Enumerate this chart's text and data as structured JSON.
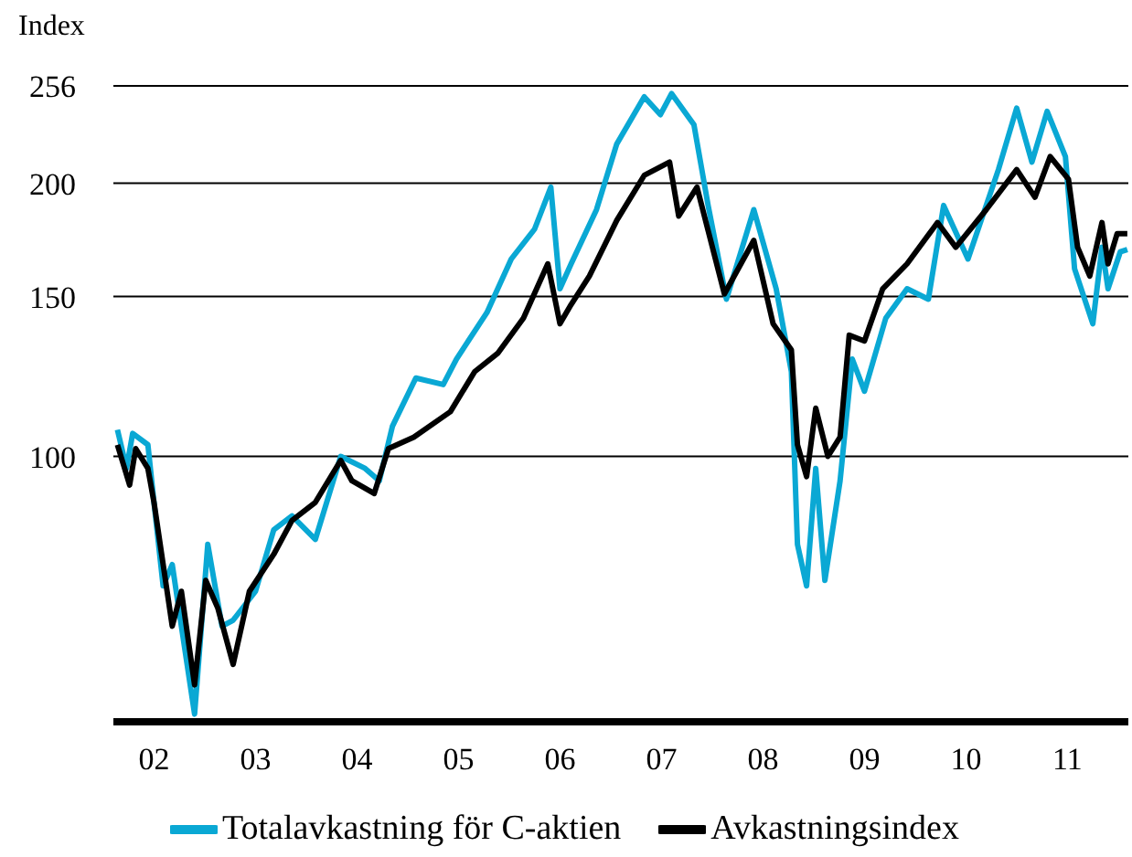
{
  "chart_data": {
    "type": "line",
    "ylabel": "Index",
    "log": "y",
    "grid": "y",
    "legend": "bottom",
    "line_style": "solid",
    "marker": "none",
    "xlim": [
      1.6,
      11.6
    ],
    "xticks": [
      {
        "value": 2,
        "label": "02"
      },
      {
        "value": 3,
        "label": "03"
      },
      {
        "value": 4,
        "label": "04"
      },
      {
        "value": 5,
        "label": "05"
      },
      {
        "value": 6,
        "label": "06"
      },
      {
        "value": 7,
        "label": "07"
      },
      {
        "value": 8,
        "label": "08"
      },
      {
        "value": 9,
        "label": "09"
      },
      {
        "value": 10,
        "label": "10"
      },
      {
        "value": 11,
        "label": "11"
      }
    ],
    "ylim": [
      51,
      256
    ],
    "yticks": [
      100,
      150,
      200,
      256
    ],
    "series": [
      {
        "name": "Totalavkastning för C-aktien",
        "color": "#0aa8d4",
        "x": [
          1.64,
          1.73,
          1.79,
          1.94,
          2.0,
          2.09,
          2.18,
          2.27,
          2.4,
          2.53,
          2.67,
          2.78,
          3.0,
          3.18,
          3.36,
          3.59,
          3.84,
          4.08,
          4.22,
          4.35,
          4.58,
          4.85,
          4.98,
          5.28,
          5.52,
          5.75,
          5.91,
          6.0,
          6.11,
          6.36,
          6.56,
          6.83,
          6.99,
          7.1,
          7.32,
          7.46,
          7.64,
          7.91,
          8.13,
          8.28,
          8.34,
          8.43,
          8.52,
          8.61,
          8.76,
          8.88,
          9.0,
          9.21,
          9.42,
          9.63,
          9.78,
          10.02,
          10.32,
          10.5,
          10.65,
          10.8,
          10.98,
          11.07,
          11.25,
          11.34,
          11.4,
          11.52,
          11.59
        ],
        "values": [
          107,
          97,
          106,
          103,
          89,
          72,
          76,
          65,
          52,
          80,
          65,
          66,
          71,
          83,
          86,
          81,
          100,
          97,
          94,
          108,
          122,
          120,
          128,
          144,
          165,
          178,
          198,
          153,
          163,
          187,
          221,
          249,
          238,
          251,
          232,
          189,
          149,
          187,
          153,
          124,
          80,
          72,
          97,
          73,
          94,
          128,
          118,
          142,
          153,
          149,
          189,
          165,
          207,
          242,
          211,
          240,
          214,
          161,
          140,
          170,
          153,
          168,
          169
        ]
      },
      {
        "name": "Avkastningsindex",
        "color": "#000000",
        "x": [
          1.64,
          1.76,
          1.82,
          1.94,
          2.0,
          2.18,
          2.27,
          2.4,
          2.51,
          2.63,
          2.78,
          2.94,
          3.18,
          3.36,
          3.59,
          3.84,
          3.95,
          4.17,
          4.31,
          4.56,
          4.92,
          5.16,
          5.39,
          5.64,
          5.88,
          6.0,
          6.11,
          6.29,
          6.56,
          6.83,
          7.08,
          7.17,
          7.35,
          7.62,
          7.91,
          8.1,
          8.28,
          8.34,
          8.43,
          8.52,
          8.64,
          8.76,
          8.85,
          9.0,
          9.18,
          9.42,
          9.72,
          9.9,
          10.2,
          10.5,
          10.68,
          10.83,
          11.01,
          11.1,
          11.22,
          11.34,
          11.4,
          11.49,
          11.59
        ],
        "values": [
          103,
          93,
          102,
          97,
          89,
          65,
          71,
          56,
          73,
          68,
          59,
          71,
          78,
          85,
          89,
          99,
          94,
          91,
          102,
          105,
          112,
          124,
          130,
          142,
          163,
          140,
          147,
          158,
          182,
          204,
          211,
          184,
          198,
          151,
          173,
          140,
          131,
          103,
          95,
          113,
          100,
          105,
          136,
          134,
          153,
          163,
          181,
          170,
          187,
          207,
          193,
          214,
          202,
          170,
          158,
          181,
          163,
          176,
          176
        ]
      }
    ]
  }
}
